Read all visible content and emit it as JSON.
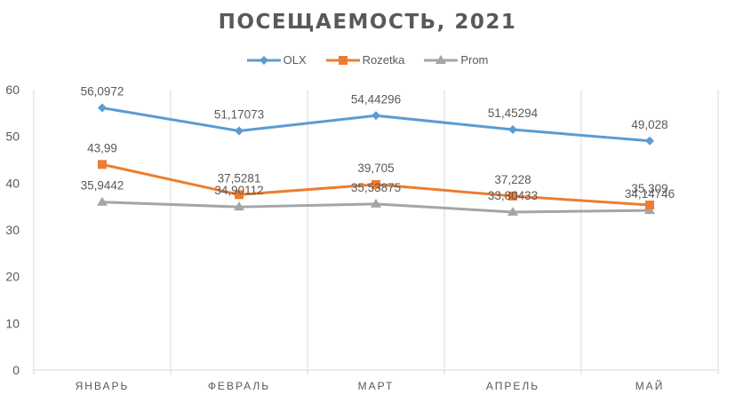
{
  "chart_data": {
    "type": "line",
    "title": "ПОСЕЩАЕМОСТЬ, 2021",
    "xlabel": "",
    "ylabel": "",
    "ylim": [
      0,
      60
    ],
    "yticks": [
      0,
      10,
      20,
      30,
      40,
      50,
      60
    ],
    "grid": "vertical category separators",
    "legend_position": "top",
    "categories": [
      "ЯНВАРЬ",
      "ФЕВРАЛЬ",
      "МАРТ",
      "АПРЕЛЬ",
      "МАЙ"
    ],
    "series": [
      {
        "name": "OLX",
        "color": "#5b9bd5",
        "marker": "diamond",
        "values": [
          56.0972,
          51.17073,
          54.44296,
          51.45294,
          49.028
        ],
        "labels": [
          "56,0972",
          "51,17073",
          "54,44296",
          "51,45294",
          "49,028"
        ]
      },
      {
        "name": "Rozetka",
        "color": "#ed7d31",
        "marker": "square",
        "values": [
          43.99,
          37.5281,
          39.705,
          37.228,
          35.309
        ],
        "labels": [
          "43,99",
          "37,5281",
          "39,705",
          "37,228",
          "35,309"
        ]
      },
      {
        "name": "Prom",
        "color": "#a5a5a5",
        "marker": "triangle",
        "values": [
          35.9442,
          34.90112,
          35.53875,
          33.80433,
          34.14746
        ],
        "labels": [
          "35,9442",
          "34,90112",
          "35,53875",
          "33,80433",
          "34,14746"
        ]
      }
    ]
  }
}
